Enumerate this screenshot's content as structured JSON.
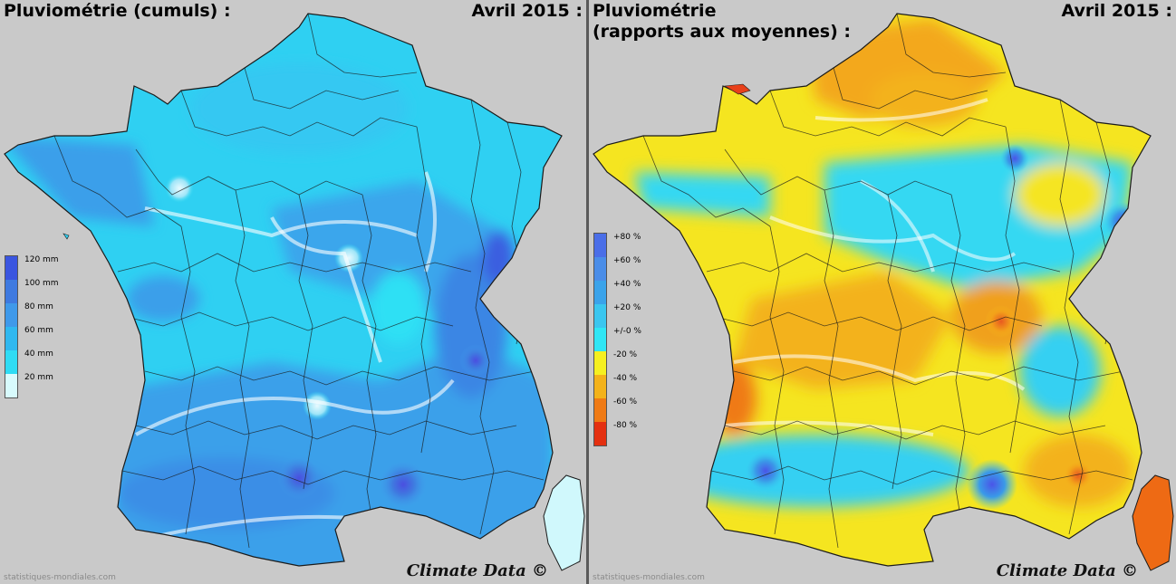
{
  "left_panel": {
    "title": "Pluviométrie (cumuls) :",
    "date": "Avril 2015 :",
    "legend": {
      "labels": [
        "120 mm",
        "100 mm",
        "80 mm",
        "60 mm",
        "40 mm",
        "20 mm"
      ],
      "colors": [
        "#3a55e0",
        "#3f7ae0",
        "#3f99ea",
        "#30b8f0",
        "#2fdcf4",
        "#d8fbfd"
      ]
    },
    "credit": "Climate Data ©",
    "watermark": "statistiques-mondiales.com",
    "base_color": "#3aaeef"
  },
  "right_panel": {
    "title": "Pluviométrie\n(rapports aux moyennes) :",
    "date": "Avril 2015 :",
    "legend": {
      "labels": [
        "+80 %",
        "+60 %",
        "+40 %",
        "+20 %",
        "+/-0 %",
        "-20 %",
        "-40 %",
        "-60 %",
        "-80 %"
      ],
      "colors": [
        "#4a6ee8",
        "#4a8de8",
        "#3aa3ea",
        "#3ac6ef",
        "#2fe6f4",
        "#f5f020",
        "#f3b21a",
        "#ef7a14",
        "#e43010"
      ]
    },
    "credit": "Climate Data ©",
    "watermark": "statistiques-mondiales.com",
    "base_color": "#f5e22a"
  }
}
